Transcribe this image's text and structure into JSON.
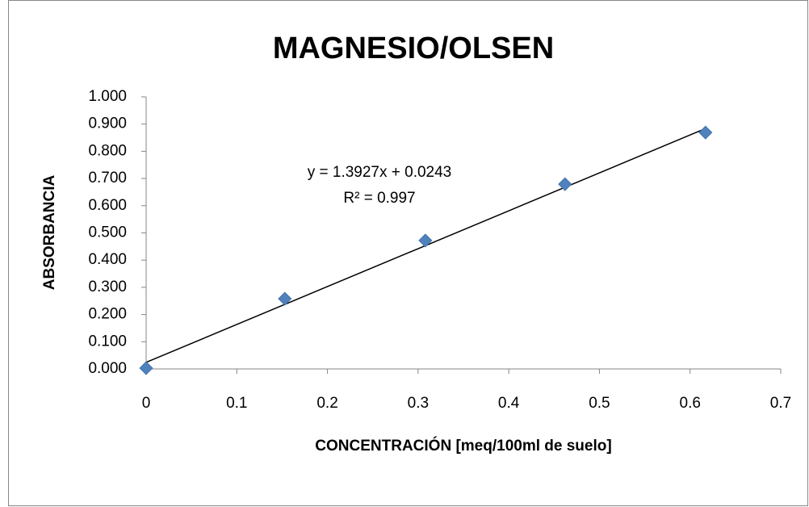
{
  "chart_data": {
    "type": "scatter",
    "title": "MAGNESIO/OLSEN",
    "x_label": "CONCENTRACIÓN [meq/100ml de suelo]",
    "y_label": "ABSORBANCIA",
    "series": [
      {
        "name": "Absorbancia",
        "color": "#4f81bd",
        "x": [
          0,
          0.153,
          0.308,
          0.462,
          0.617
        ],
        "values": [
          0.003,
          0.258,
          0.472,
          0.679,
          0.869
        ]
      }
    ],
    "trendline": {
      "slope": 1.3927,
      "intercept": 0.0243,
      "color": "#000000",
      "equation": "y = 1.3927x + 0.0243",
      "r_squared": "R² = 0.997"
    },
    "xlim": [
      0,
      0.7
    ],
    "xticks": [
      0,
      0.1,
      0.2,
      0.3,
      0.4,
      0.5,
      0.6,
      0.7
    ],
    "ylim": [
      0,
      1
    ],
    "yticks": [
      {
        "value": 0,
        "label": "0.000"
      },
      {
        "value": 0.1,
        "label": "0.100"
      },
      {
        "value": 0.2,
        "label": "0.200"
      },
      {
        "value": 0.3,
        "label": "0.300"
      },
      {
        "value": 0.4,
        "label": "0.400"
      },
      {
        "value": 0.5,
        "label": "0.500"
      },
      {
        "value": 0.6,
        "label": "0.600"
      },
      {
        "value": 0.7,
        "label": "0.700"
      },
      {
        "value": 0.8,
        "label": "0.800"
      },
      {
        "value": 0.9,
        "label": "0.900"
      },
      {
        "value": 1,
        "label": "1.000"
      }
    ],
    "grid": false
  }
}
